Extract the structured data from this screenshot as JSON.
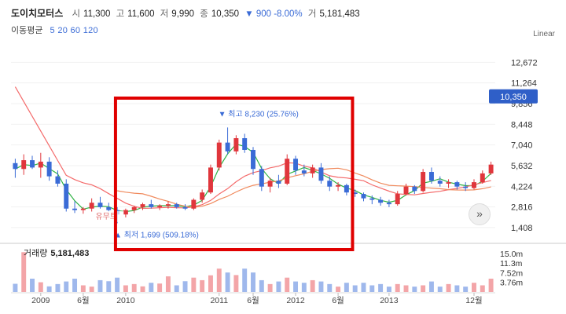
{
  "header": {
    "name": "도이치모터스",
    "open_label": "시",
    "open": "11,300",
    "high_label": "고",
    "high": "11,600",
    "low_label": "저",
    "low": "9,990",
    "close_label": "종",
    "close": "10,350",
    "change": "▼ 900 -8.00%",
    "volume_label": "거",
    "volume": "5,181,483"
  },
  "ma": {
    "label": "이동평균",
    "periods": "5 20 60 120"
  },
  "scale_label": "Linear",
  "volume_title": {
    "label": "거래량",
    "value": "5,181,483"
  },
  "colors": {
    "up": "#e0363c",
    "down": "#3a6bd6",
    "ma_short": "#2fb344",
    "ma_mid": "#f08a5d",
    "ma_long": "#f46b6b",
    "highlight": "#e00000",
    "current_price": "#2f5fc8"
  },
  "icons": {
    "expand": "»"
  },
  "chart_data": {
    "type": "candlestick",
    "y_ticks": [
      "12,672",
      "11,264",
      "9,856",
      "8,448",
      "7,040",
      "5,632",
      "4,224",
      "2,816",
      "1,408"
    ],
    "y_tick_values": [
      12672,
      11264,
      9856,
      8448,
      7040,
      5632,
      4224,
      2816,
      1408
    ],
    "ylim": [
      600,
      13600
    ],
    "current_price": {
      "label": "10,350",
      "value": 10350
    },
    "x_labels": [
      "2009",
      "6월",
      "2010",
      "2011",
      "6월",
      "2012",
      "6월",
      "2013",
      "12월"
    ],
    "x_label_index": [
      3,
      8,
      13,
      24,
      28,
      33,
      38,
      44,
      54
    ],
    "annotations": {
      "high": {
        "text": "▼ 최고 8,230 (25.76%)",
        "value": 8230,
        "index": 25
      },
      "low": {
        "text": "▲ 최저 1,699 (509.18%)",
        "value": 1699,
        "index": 12
      },
      "overlay_text": "유무트",
      "highlight_box": {
        "from_index": 12.3,
        "to_index": 40.2
      }
    },
    "candles": [
      {
        "o": 5800,
        "h": 6100,
        "l": 4800,
        "c": 5400
      },
      {
        "o": 5400,
        "h": 6400,
        "l": 5000,
        "c": 6000
      },
      {
        "o": 6000,
        "h": 6300,
        "l": 5400,
        "c": 5500
      },
      {
        "o": 5500,
        "h": 6500,
        "l": 4800,
        "c": 5900
      },
      {
        "o": 5900,
        "h": 6200,
        "l": 4600,
        "c": 4900
      },
      {
        "o": 4900,
        "h": 5300,
        "l": 4200,
        "c": 4400
      },
      {
        "o": 4400,
        "h": 4700,
        "l": 2500,
        "c": 2700
      },
      {
        "o": 2700,
        "h": 3200,
        "l": 2400,
        "c": 2600
      },
      {
        "o": 2600,
        "h": 2800,
        "l": 2350,
        "c": 2700
      },
      {
        "o": 2700,
        "h": 3400,
        "l": 2500,
        "c": 3100
      },
      {
        "o": 3100,
        "h": 3500,
        "l": 2700,
        "c": 2800
      },
      {
        "o": 2800,
        "h": 3100,
        "l": 2500,
        "c": 2600
      },
      {
        "o": 2600,
        "h": 2800,
        "l": 1700,
        "c": 2300
      },
      {
        "o": 2300,
        "h": 2700,
        "l": 2100,
        "c": 2600
      },
      {
        "o": 2600,
        "h": 2900,
        "l": 2400,
        "c": 2800
      },
      {
        "o": 2800,
        "h": 3100,
        "l": 2600,
        "c": 3000
      },
      {
        "o": 3000,
        "h": 3300,
        "l": 2700,
        "c": 2800
      },
      {
        "o": 2800,
        "h": 3000,
        "l": 2600,
        "c": 2900
      },
      {
        "o": 2900,
        "h": 3200,
        "l": 2700,
        "c": 3000
      },
      {
        "o": 3000,
        "h": 3100,
        "l": 2700,
        "c": 2800
      },
      {
        "o": 2800,
        "h": 3000,
        "l": 2600,
        "c": 2700
      },
      {
        "o": 2700,
        "h": 3400,
        "l": 2600,
        "c": 3300
      },
      {
        "o": 3300,
        "h": 4000,
        "l": 3100,
        "c": 3800
      },
      {
        "o": 3800,
        "h": 5700,
        "l": 3700,
        "c": 5500
      },
      {
        "o": 5500,
        "h": 7400,
        "l": 5300,
        "c": 7200
      },
      {
        "o": 7200,
        "h": 8230,
        "l": 6400,
        "c": 6600
      },
      {
        "o": 6600,
        "h": 7700,
        "l": 6400,
        "c": 7500
      },
      {
        "o": 7500,
        "h": 7800,
        "l": 6500,
        "c": 6700
      },
      {
        "o": 6700,
        "h": 6900,
        "l": 5000,
        "c": 5400
      },
      {
        "o": 5400,
        "h": 5600,
        "l": 3900,
        "c": 4200
      },
      {
        "o": 4200,
        "h": 4800,
        "l": 3800,
        "c": 4600
      },
      {
        "o": 4600,
        "h": 5000,
        "l": 4100,
        "c": 4400
      },
      {
        "o": 4400,
        "h": 6400,
        "l": 4300,
        "c": 6100
      },
      {
        "o": 6100,
        "h": 6300,
        "l": 5000,
        "c": 5300
      },
      {
        "o": 5300,
        "h": 5700,
        "l": 4900,
        "c": 5100
      },
      {
        "o": 5100,
        "h": 5700,
        "l": 4800,
        "c": 5500
      },
      {
        "o": 5500,
        "h": 5800,
        "l": 4400,
        "c": 4600
      },
      {
        "o": 4600,
        "h": 4900,
        "l": 3900,
        "c": 4200
      },
      {
        "o": 4200,
        "h": 4500,
        "l": 3900,
        "c": 4300
      },
      {
        "o": 4300,
        "h": 4400,
        "l": 3600,
        "c": 3800
      },
      {
        "o": 3800,
        "h": 4000,
        "l": 3500,
        "c": 3700
      },
      {
        "o": 3700,
        "h": 3800,
        "l": 3200,
        "c": 3400
      },
      {
        "o": 3400,
        "h": 3600,
        "l": 3000,
        "c": 3300
      },
      {
        "o": 3300,
        "h": 3500,
        "l": 2900,
        "c": 3100
      },
      {
        "o": 3100,
        "h": 3300,
        "l": 2800,
        "c": 3000
      },
      {
        "o": 3000,
        "h": 3900,
        "l": 2900,
        "c": 3700
      },
      {
        "o": 3700,
        "h": 4400,
        "l": 3600,
        "c": 4200
      },
      {
        "o": 4200,
        "h": 4300,
        "l": 3700,
        "c": 3900
      },
      {
        "o": 3900,
        "h": 5400,
        "l": 3800,
        "c": 5200
      },
      {
        "o": 5200,
        "h": 5500,
        "l": 4400,
        "c": 4600
      },
      {
        "o": 4600,
        "h": 4900,
        "l": 4200,
        "c": 4400
      },
      {
        "o": 4400,
        "h": 4700,
        "l": 4100,
        "c": 4500
      },
      {
        "o": 4500,
        "h": 4600,
        "l": 4000,
        "c": 4200
      },
      {
        "o": 4200,
        "h": 4500,
        "l": 3900,
        "c": 4100
      },
      {
        "o": 4100,
        "h": 4700,
        "l": 4000,
        "c": 4500
      },
      {
        "o": 4500,
        "h": 5300,
        "l": 4400,
        "c": 5100
      },
      {
        "o": 5100,
        "h": 5900,
        "l": 5000,
        "c": 5700
      }
    ],
    "volume_ticks": [
      "15.0m",
      "11.3m",
      "7.52m",
      "3.76m"
    ],
    "volume_tick_values": [
      15.0,
      11.3,
      7.52,
      3.76
    ],
    "volume_max": 16.5,
    "volume": [
      3.2,
      15.5,
      5.2,
      3.8,
      2.2,
      3.1,
      4.1,
      5.2,
      2.6,
      2.1,
      4.6,
      4.2,
      5.6,
      2.6,
      3.1,
      2.2,
      3.6,
      3.3,
      6.1,
      2.6,
      4.2,
      5.6,
      4.6,
      6.5,
      9.1,
      7.6,
      6.6,
      9.1,
      7.6,
      4.6,
      3.1,
      4.1,
      5.6,
      4.1,
      3.6,
      4.6,
      4.1,
      3.1,
      2.1,
      3.6,
      2.6,
      3.6,
      2.6,
      3.1,
      2.1,
      3.1,
      2.6,
      2.1,
      2.6,
      4.1,
      2.1,
      3.1,
      2.6,
      2.1,
      3.6,
      2.6,
      5.2
    ]
  }
}
